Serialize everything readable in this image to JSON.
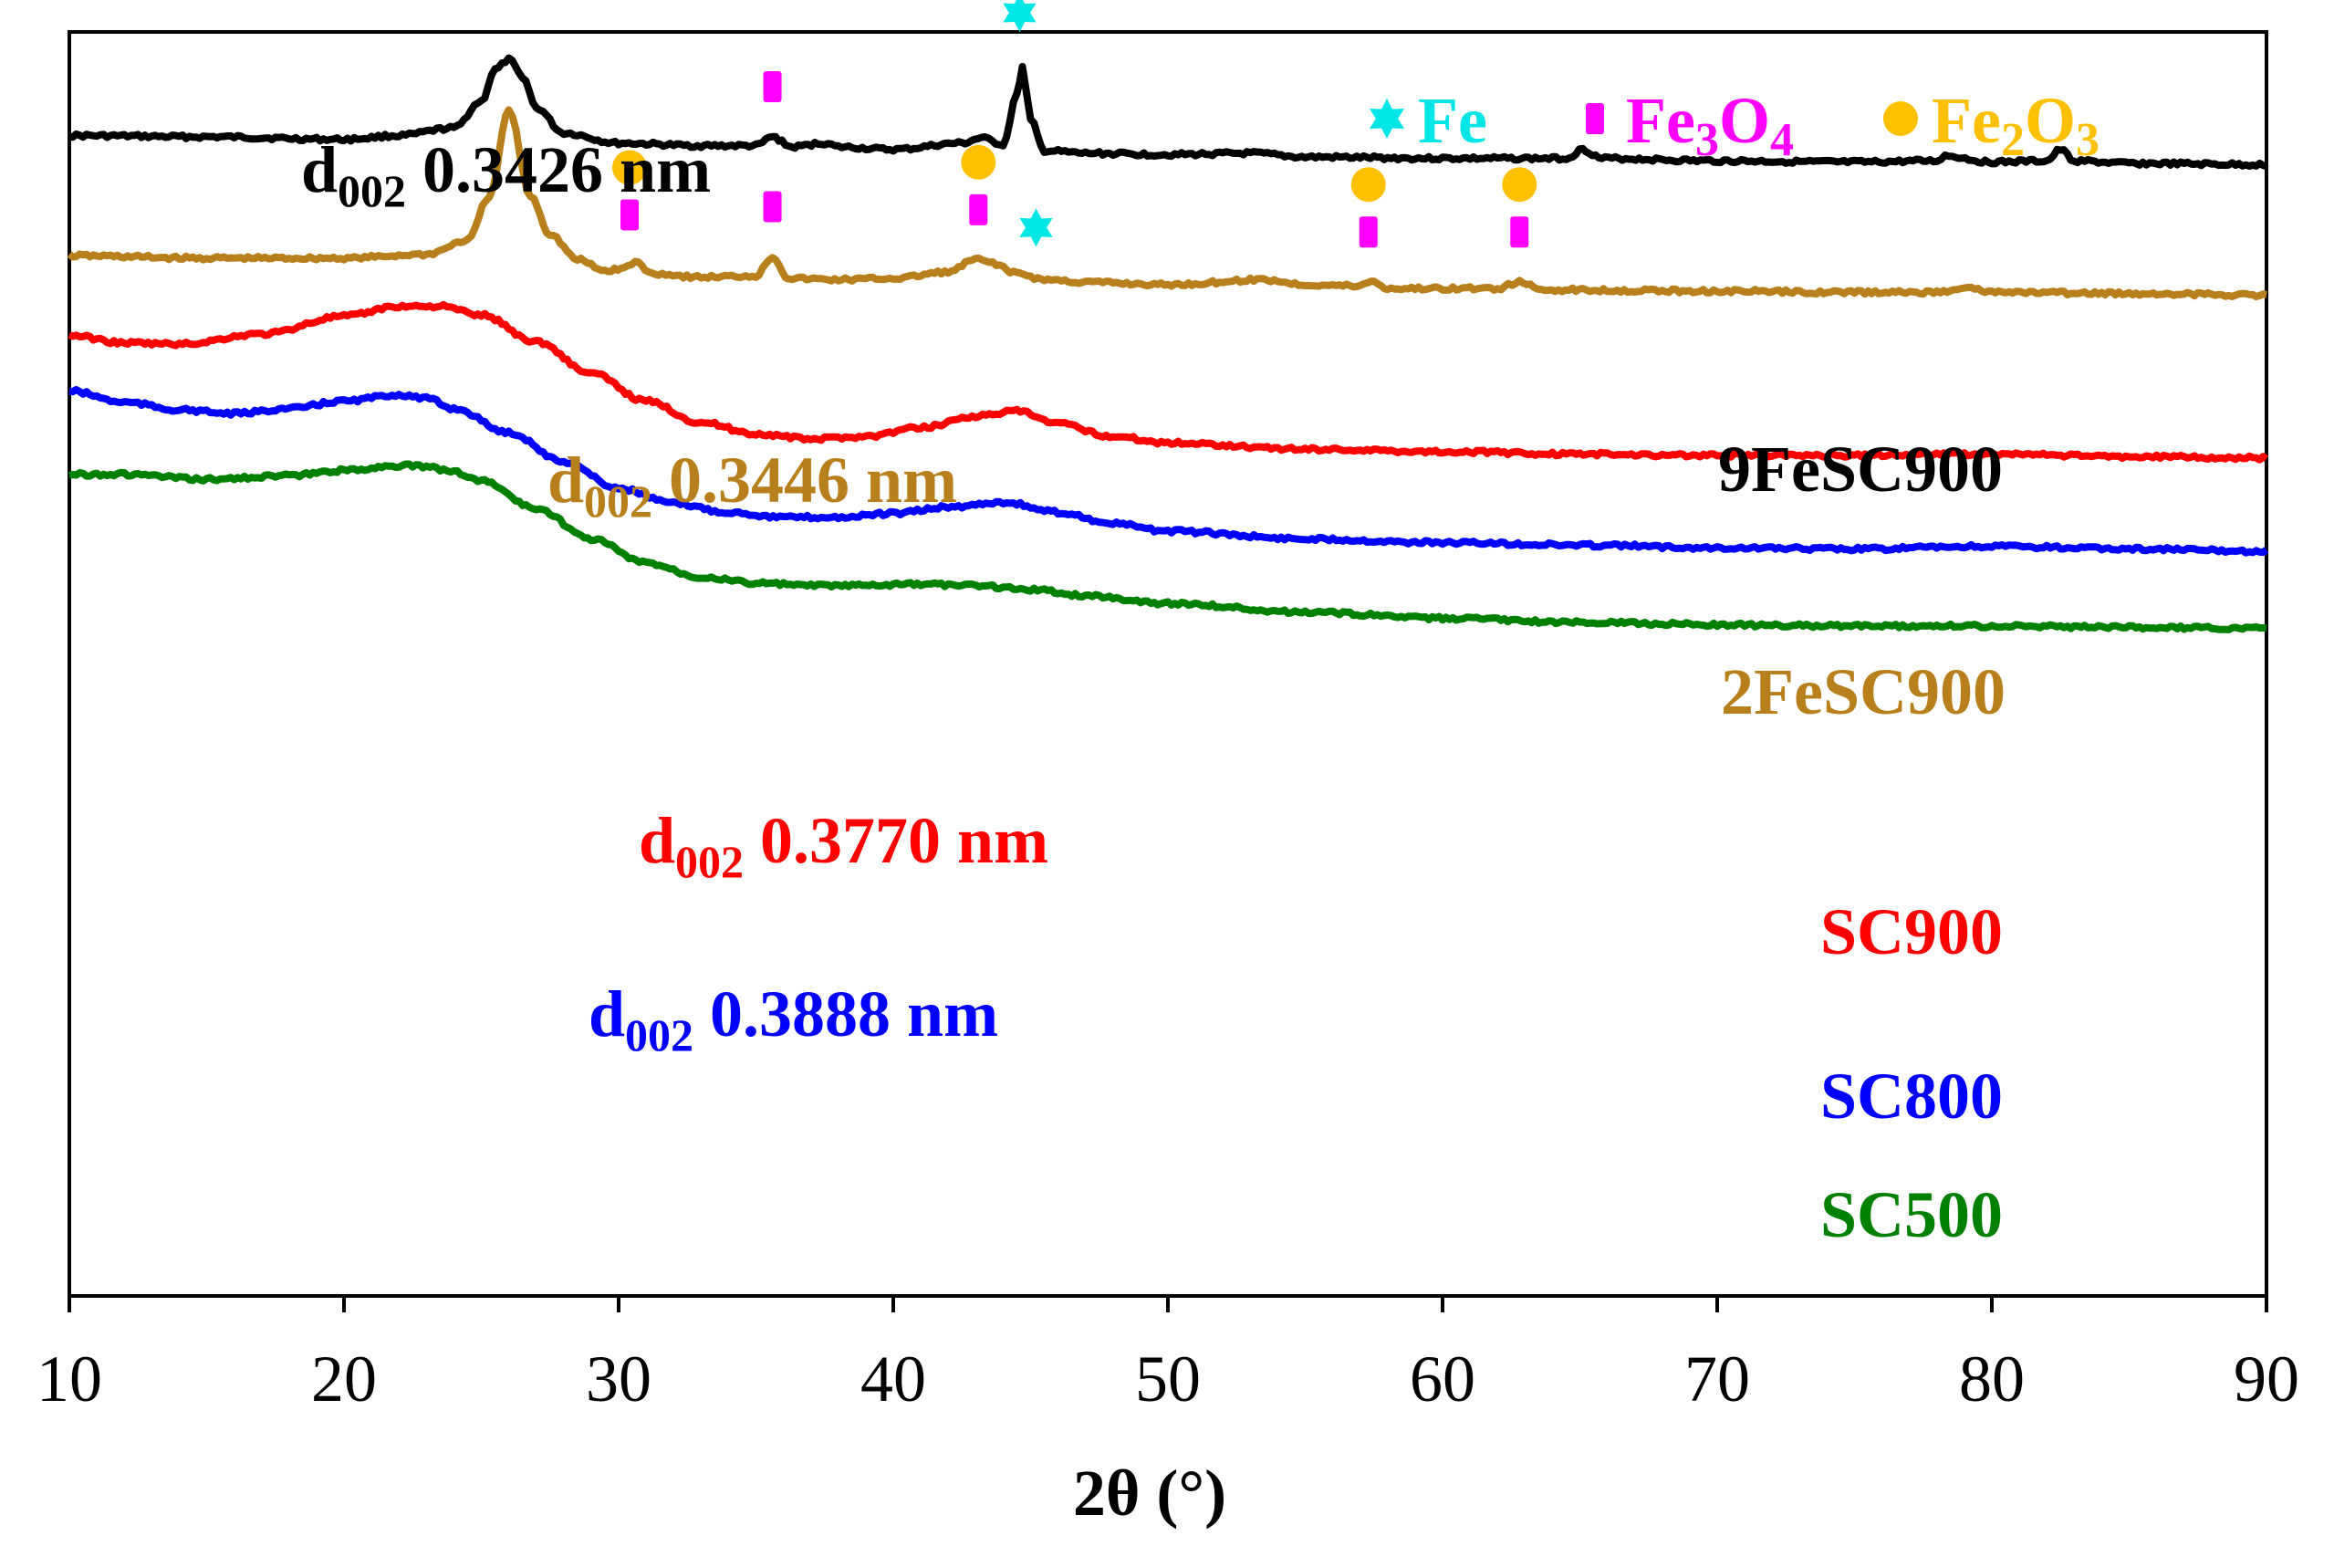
{
  "chart_data": {
    "type": "line",
    "title": "",
    "xlabel": "2θ (°)",
    "ylabel": "",
    "xlim": [
      10,
      90
    ],
    "ylim": [
      0,
      100
    ],
    "grid": false,
    "x_ticks": [
      "10",
      "20",
      "30",
      "40",
      "50",
      "60",
      "70",
      "80",
      "90"
    ],
    "legend": {
      "position": "top-right",
      "entries": [
        {
          "name": "Fe",
          "sub": "",
          "name2": "",
          "marker": "star",
          "color": "#00e5e5"
        },
        {
          "name": "Fe",
          "sub": "3",
          "name2": "O",
          "sub2": "4",
          "marker": "bar",
          "color": "#ff00ff"
        },
        {
          "name": "Fe",
          "sub": "2",
          "name2": "O",
          "sub2": "3",
          "marker": "circle",
          "color": "#ffc000"
        }
      ]
    },
    "series": [
      {
        "name": "9FeSC900",
        "color": "#000000",
        "d002": {
          "prefix": "d",
          "sub": "002",
          "value": "0.3426 nm"
        },
        "x": [
          10,
          15,
          20,
          22,
          24,
          25,
          25.5,
          26,
          26.5,
          27,
          28,
          30,
          33,
          35,
          35.6,
          36.3,
          37.5,
          38,
          40,
          42.5,
          43.2,
          44,
          44.5,
          44.7,
          45,
          45.5,
          47,
          50,
          53,
          55,
          60,
          64.5,
          65.1,
          65.8,
          70,
          75,
          78,
          78.3,
          80,
          82,
          82.5,
          83,
          85,
          90
        ],
        "y": [
          91.8,
          91.7,
          91.5,
          91.8,
          92.4,
          94.5,
          97,
          97.8,
          96.5,
          94,
          92,
          91.2,
          91,
          91,
          91.7,
          90.9,
          91.2,
          90.9,
          90.7,
          91.2,
          91.6,
          91.1,
          95,
          97.2,
          93,
          90.6,
          90.4,
          90.3,
          90.4,
          90.1,
          90,
          90,
          90.7,
          90,
          89.8,
          89.7,
          89.8,
          90.2,
          89.7,
          89.8,
          90.7,
          89.8,
          89.6,
          89.5
        ]
      },
      {
        "name": "2FeSC900",
        "color": "#b8801c",
        "d002": {
          "prefix": "d",
          "sub": "002",
          "value": "0.3446 nm"
        },
        "x": [
          10,
          15,
          20,
          23,
          24.5,
          25.3,
          26,
          26.8,
          27.5,
          28.5,
          29.5,
          30.2,
          30.6,
          31.2,
          33,
          35,
          35.6,
          36.2,
          38,
          40,
          42,
          43,
          43.5,
          44.5,
          45.5,
          47,
          50,
          53.5,
          55,
          57,
          57.4,
          58,
          62,
          62.8,
          63.6,
          70,
          75,
          78,
          79,
          80,
          85,
          90
        ],
        "y": [
          82.3,
          82.1,
          82.1,
          82.4,
          83.5,
          87,
          93.8,
          87,
          84,
          82,
          81.1,
          81.3,
          81.8,
          80.9,
          80.6,
          80.7,
          82.2,
          80.5,
          80.4,
          80.5,
          81,
          82,
          81.8,
          80.9,
          80.4,
          80.2,
          80,
          80.4,
          80,
          79.9,
          80.3,
          79.7,
          79.7,
          80.2,
          79.6,
          79.5,
          79.4,
          79.4,
          79.8,
          79.4,
          79.3,
          79.2
        ]
      },
      {
        "name": "SC900",
        "color": "#ff0000",
        "d002": {
          "prefix": "d",
          "sub": "002",
          "value": "0.3770 nm"
        },
        "x": [
          10,
          12,
          14,
          17,
          20,
          22,
          23.5,
          25,
          27,
          29,
          31,
          33,
          35,
          37,
          39,
          41,
          43,
          44.5,
          46,
          48,
          50,
          55,
          60,
          65,
          70,
          75,
          78,
          80,
          85,
          90
        ],
        "y": [
          76,
          75.4,
          75.3,
          76.1,
          77.5,
          78.3,
          78.3,
          77.6,
          75.5,
          73,
          70.8,
          69.1,
          68.2,
          67.8,
          68,
          68.7,
          69.6,
          70,
          69,
          68,
          67.5,
          67,
          66.8,
          66.6,
          66.5,
          66.5,
          66.6,
          66.6,
          66.4,
          66.3
        ]
      },
      {
        "name": "SC800",
        "color": "#0000ff",
        "d002": {
          "prefix": "d",
          "sub": "002",
          "value": "0.3888 nm"
        },
        "x": [
          10,
          12,
          14,
          16,
          18,
          20,
          22,
          23,
          24,
          26,
          28,
          30,
          32,
          34,
          36,
          38,
          40,
          42,
          44,
          46,
          48,
          50,
          55,
          60,
          65,
          70,
          75,
          80,
          85,
          90
        ],
        "y": [
          71.6,
          70.7,
          70.1,
          69.8,
          70.2,
          70.8,
          71.3,
          71,
          70.2,
          68.3,
          66,
          63.9,
          62.7,
          62,
          61.6,
          61.6,
          61.9,
          62.4,
          62.8,
          62,
          61.1,
          60.5,
          59.9,
          59.6,
          59.4,
          59.2,
          59.1,
          59.3,
          59.1,
          58.9
        ]
      },
      {
        "name": "SC500",
        "color": "#008000",
        "d002": null,
        "x": [
          10,
          12,
          15,
          18,
          20,
          22,
          23,
          24,
          25,
          27,
          29,
          31,
          33,
          35,
          37,
          39,
          41,
          43,
          45,
          47,
          50,
          55,
          60,
          65,
          70,
          75,
          80,
          85,
          90
        ],
        "y": [
          65,
          65,
          64.6,
          64.9,
          65.3,
          65.7,
          65.6,
          65.2,
          64.5,
          62.3,
          59.9,
          58,
          56.9,
          56.4,
          56.2,
          56.2,
          56.3,
          56.2,
          55.9,
          55.4,
          54.8,
          54.1,
          53.6,
          53.3,
          53.1,
          53,
          53,
          52.9,
          52.8
        ]
      }
    ],
    "phase_markers": [
      {
        "series": "9FeSC900",
        "x": 35.6,
        "phases": [
          "Fe3O4"
        ]
      },
      {
        "series": "9FeSC900",
        "x": 44.6,
        "phases": [
          "Fe"
        ]
      },
      {
        "series": "2FeSC900",
        "x": 30.4,
        "phases": [
          "Fe3O4",
          "Fe2O3"
        ]
      },
      {
        "series": "2FeSC900",
        "x": 35.6,
        "phases": [
          "Fe3O4"
        ]
      },
      {
        "series": "2FeSC900",
        "x": 43.1,
        "phases": [
          "Fe3O4",
          "Fe2O3"
        ]
      },
      {
        "series": "2FeSC900",
        "x": 45.2,
        "phases": [
          "Fe"
        ]
      },
      {
        "series": "2FeSC900",
        "x": 57.3,
        "phases": [
          "Fe3O4",
          "Fe2O3"
        ]
      },
      {
        "series": "2FeSC900",
        "x": 62.8,
        "phases": [
          "Fe3O4",
          "Fe2O3"
        ]
      }
    ]
  }
}
